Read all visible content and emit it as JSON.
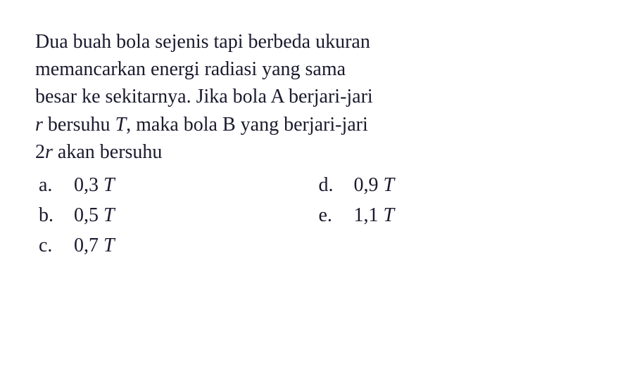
{
  "question": {
    "line1": "Dua buah bola sejenis tapi berbeda ukuran",
    "line2": "memancarkan energi radiasi yang sama",
    "line3": "besar ke sekitarnya. Jika bola A berjari-jari",
    "line4_part1": " bersuhu ",
    "line4_part2": ", maka bola B yang berjari-jari",
    "line5_part1": "2",
    "line5_part2": " akan bersuhu",
    "var_r": "r",
    "var_T": "T"
  },
  "options": {
    "a": {
      "label": "a.",
      "value": "0,3 ",
      "unit": "T"
    },
    "b": {
      "label": "b.",
      "value": "0,5 ",
      "unit": "T"
    },
    "c": {
      "label": "c.",
      "value": "0,7 ",
      "unit": "T"
    },
    "d": {
      "label": "d.",
      "value": "0,9 ",
      "unit": "T"
    },
    "e": {
      "label": "e.",
      "value": "1,1 ",
      "unit": "T"
    }
  },
  "style": {
    "font_family": "Times New Roman",
    "font_size_pt": 28,
    "text_color": "#1a1a2e",
    "background_color": "#ffffff"
  }
}
